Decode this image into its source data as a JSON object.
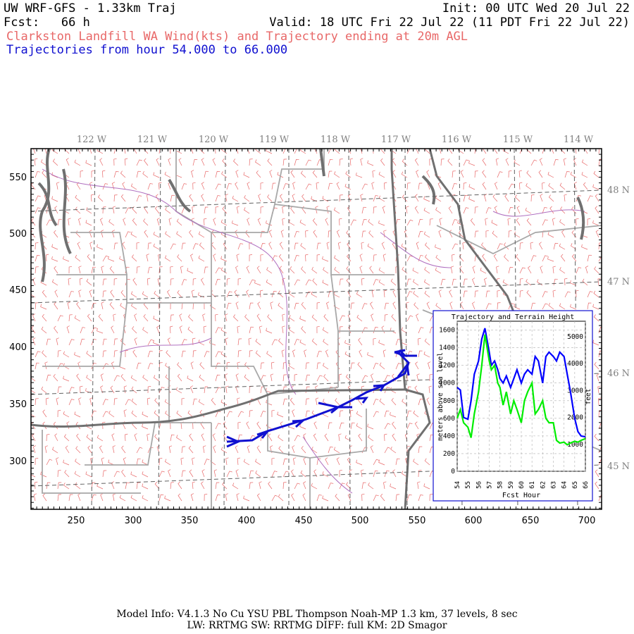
{
  "header": {
    "title": "UW WRF-GFS - 1.33km Traj",
    "init": "Init: 00 UTC Wed 20 Jul 22",
    "fcst_label": "Fcst:",
    "fcst_value": "66 h",
    "valid": "Valid: 18 UTC Fri 22 Jul 22 (11 PDT Fri 22 Jul 22)",
    "subtitle": "Clarkston Landfill WA Wind(kts) and Trajectory ending at 20m AGL",
    "traj_range": "Trajectories from hour  54.000 to  66.000"
  },
  "map": {
    "lon_labels": [
      "122 W",
      "121 W",
      "120 W",
      "119 W",
      "118 W",
      "117 W",
      "116 W",
      "115 W",
      "114 W"
    ],
    "lat_labels": [
      "48 N",
      "47 N",
      "46 N",
      "45 N"
    ],
    "x_ticks": [
      "250",
      "300",
      "350",
      "400",
      "450",
      "500",
      "550",
      "600",
      "650",
      "700"
    ],
    "y_ticks": [
      "550",
      "500",
      "450",
      "400",
      "350",
      "300"
    ],
    "trajectory_color": "#1010d0",
    "wind_barb_color": "#e86868",
    "border_color": "#707070",
    "county_color": "#a8a8a8"
  },
  "inset": {
    "title": "Trajectory and Terrain Height",
    "ylabel_left": "meters above sea level",
    "ylabel_right": "feet",
    "xlabel": "Fcst Hour",
    "y_left_ticks": [
      "0",
      "200",
      "400",
      "600",
      "800",
      "1000",
      "1200",
      "1400",
      "1600"
    ],
    "y_right_ticks": [
      "1000",
      "2000",
      "3000",
      "4000",
      "5000"
    ],
    "x_ticks": [
      "54",
      "55",
      "56",
      "57",
      "58",
      "59",
      "60",
      "61",
      "62",
      "63",
      "64",
      "65",
      "66"
    ]
  },
  "chart_data": {
    "type": "line",
    "title": "Trajectory and Terrain Height",
    "xlabel": "Fcst Hour",
    "ylabel": "meters above sea level",
    "xlim": [
      54,
      66
    ],
    "ylim": [
      0,
      1700
    ],
    "series": [
      {
        "color": "#0000ff",
        "x": [
          54,
          54.3,
          54.6,
          55,
          55.3,
          55.6,
          56,
          56.3,
          56.6,
          57,
          57.2,
          57.5,
          57.8,
          58,
          58.3,
          58.6,
          59,
          59.3,
          59.6,
          60,
          60.3,
          60.6,
          61,
          61.3,
          61.6,
          62,
          62.3,
          62.6,
          63,
          63.3,
          63.6,
          64,
          64.3,
          64.6,
          65,
          65.3,
          65.6,
          66
        ],
        "values": [
          950,
          920,
          610,
          590,
          800,
          1100,
          1250,
          1500,
          1620,
          1350,
          1200,
          1250,
          1150,
          1050,
          1000,
          1080,
          950,
          1050,
          1150,
          1000,
          1100,
          1150,
          1100,
          1300,
          1250,
          1000,
          1300,
          1350,
          1300,
          1250,
          1350,
          1300,
          1100,
          900,
          600,
          450,
          400,
          390
        ]
      },
      {
        "color": "#00ee00",
        "x": [
          54,
          54.3,
          54.6,
          55,
          55.3,
          55.6,
          56,
          56.3,
          56.6,
          57,
          57.2,
          57.5,
          57.8,
          58,
          58.3,
          58.6,
          59,
          59.3,
          59.6,
          60,
          60.3,
          60.6,
          61,
          61.3,
          61.6,
          62,
          62.3,
          62.6,
          63,
          63.3,
          63.6,
          64,
          64.3,
          64.6,
          65,
          65.3,
          65.6,
          66
        ],
        "values": [
          600,
          700,
          550,
          500,
          380,
          650,
          900,
          1200,
          1550,
          1250,
          1150,
          1200,
          1000,
          950,
          750,
          900,
          650,
          800,
          700,
          550,
          800,
          900,
          1000,
          650,
          700,
          800,
          600,
          550,
          550,
          350,
          320,
          330,
          300,
          320,
          340,
          330,
          350,
          370
        ]
      }
    ]
  },
  "footer": {
    "line1": "Model Info: V4.1.3    No Cu    YSU PBL   Thompson     Noah-MP    1.3 km,  37 levels,    8 sec",
    "line2": "LW: RRTMG SW: RRTMG    DIFF: full    KM: 2D Smagor"
  }
}
